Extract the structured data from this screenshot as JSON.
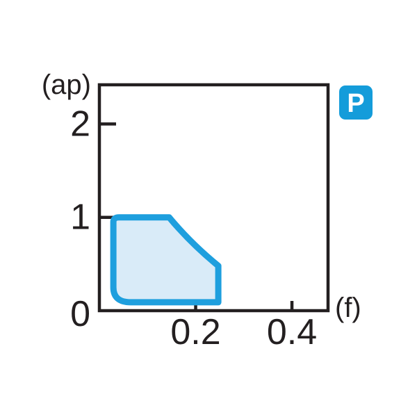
{
  "chart_data": {
    "type": "area",
    "title": "",
    "x_axis": {
      "label": "(f)",
      "min": 0,
      "max": 0.475,
      "ticks": [
        {
          "value": 0.2,
          "label": "0.2"
        },
        {
          "value": 0.4,
          "label": "0.4"
        }
      ]
    },
    "y_axis": {
      "label": "(ap)",
      "min": 0,
      "max": 2.42,
      "ticks": [
        {
          "value": 1,
          "label": "1"
        },
        {
          "value": 2,
          "label": "2"
        }
      ]
    },
    "origin_label": "0",
    "grid": "off",
    "region": {
      "name": "recommended-application-range",
      "f_range": [
        0.03,
        0.25
      ],
      "ap_range": [
        0.09,
        1.0
      ],
      "path": [
        {
          "cmd": "M",
          "pts": [
            [
              0.041,
              1.0
            ]
          ]
        },
        {
          "cmd": "L",
          "pts": [
            [
              0.145,
              1.0
            ]
          ]
        },
        {
          "cmd": "Q",
          "pts": [
            [
              0.19,
              0.72
            ],
            [
              0.247,
              0.48
            ]
          ]
        },
        {
          "cmd": "L",
          "pts": [
            [
              0.247,
              0.09
            ]
          ]
        },
        {
          "cmd": "L",
          "pts": [
            [
              0.065,
              0.09
            ]
          ]
        },
        {
          "cmd": "Q",
          "pts": [
            [
              0.029,
              0.09
            ],
            [
              0.029,
              0.25
            ]
          ]
        },
        {
          "cmd": "L",
          "pts": [
            [
              0.029,
              0.95
            ]
          ]
        },
        {
          "cmd": "Q",
          "pts": [
            [
              0.029,
              1.0
            ],
            [
              0.041,
              1.0
            ]
          ]
        },
        {
          "cmd": "Z",
          "pts": []
        }
      ]
    },
    "badge": {
      "label": "P",
      "color": "#149cda",
      "text_color": "#ffffff"
    },
    "colors": {
      "region_fill": "#d9ebf8",
      "region_stroke": "#1e9fde",
      "axis": "#231f20",
      "background": "#ffffff"
    }
  }
}
